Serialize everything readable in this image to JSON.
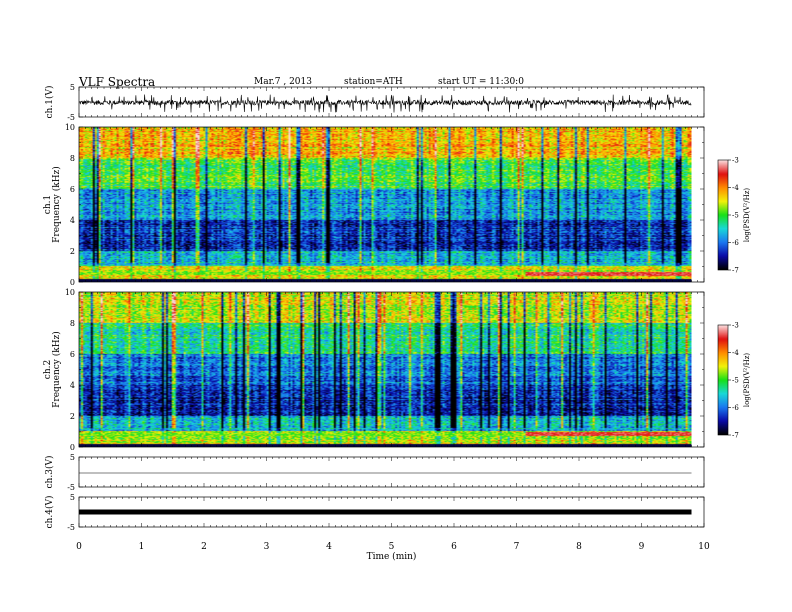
{
  "header": {
    "title": "VLF  Spectra",
    "date": "Mar.7  , 2013",
    "station": "station=ATH",
    "start": "start  UT =   11:30:0"
  },
  "panels": {
    "ch1_wave": {
      "ylabel": "ch.1(V)",
      "ticks": [
        "5",
        "-5"
      ]
    },
    "ch1_spec": {
      "ylabel_top": "ch.1",
      "ylabel": "Frequency  (kHz)",
      "ticks": [
        "10",
        "8",
        "6",
        "4",
        "2",
        "0"
      ]
    },
    "ch2_spec": {
      "ylabel_top": "ch.2",
      "ylabel": "Frequency  (kHz)",
      "ticks": [
        "10",
        "8",
        "6",
        "4",
        "2",
        "0"
      ]
    },
    "ch3_wave": {
      "ylabel": "ch.3(V)",
      "ticks": [
        "5",
        "-5"
      ]
    },
    "ch4_wave": {
      "ylabel": "ch.4(V)",
      "ticks": [
        "5",
        "-5"
      ]
    }
  },
  "colorbar": {
    "label": "log(PSD(V²/Hz)",
    "ticks": [
      "-3",
      "-4",
      "-5",
      "-6",
      "-7"
    ],
    "colors": [
      "#fbdada",
      "#e01010",
      "#ff8c00",
      "#f2f20a",
      "#18e018",
      "#18d8d8",
      "#1a78f0",
      "#0a0aa8",
      "#000000"
    ]
  },
  "chart_data": [
    {
      "type": "line",
      "title": "ch.1(V)",
      "ylabel": "ch.1(V)",
      "xlabel": "Time  (min)",
      "xlim": [
        0,
        10
      ],
      "ylim": [
        -5,
        5
      ],
      "data_extent_min": [
        0,
        9.8
      ],
      "typical_amplitude_V": [
        -1.5,
        1.0
      ],
      "spikes_V": [
        2.5,
        -3.5
      ]
    },
    {
      "type": "heatmap",
      "title": "ch.1",
      "ylabel": "Frequency  (kHz)",
      "xlabel": "Time  (min)",
      "xlim": [
        0,
        10
      ],
      "ylim": [
        0,
        10
      ],
      "colorbar_label": "log(PSD(V²/Hz)",
      "color_range": [
        -7,
        -3
      ],
      "log_psd_by_band": [
        {
          "freq_kHz": [
            8,
            10
          ],
          "log_psd": -4.2
        },
        {
          "freq_kHz": [
            6,
            8
          ],
          "log_psd": -5.0
        },
        {
          "freq_kHz": [
            4,
            6
          ],
          "log_psd": -5.8
        },
        {
          "freq_kHz": [
            2,
            4
          ],
          "log_psd": -6.3
        },
        {
          "freq_kHz": [
            1,
            2
          ],
          "log_psd": -5.6
        },
        {
          "freq_kHz": [
            0,
            1
          ],
          "log_psd": -4.5
        }
      ],
      "enhanced_line_kHz": 0.5,
      "enhanced_line_start_min": 7.3
    },
    {
      "type": "heatmap",
      "title": "ch.2",
      "ylabel": "Frequency  (kHz)",
      "xlabel": "Time  (min)",
      "xlim": [
        0,
        10
      ],
      "ylim": [
        0,
        10
      ],
      "colorbar_label": "log(PSD(V²/Hz)",
      "color_range": [
        -7,
        -3
      ],
      "log_psd_by_band": [
        {
          "freq_kHz": [
            8,
            10
          ],
          "log_psd": -4.6
        },
        {
          "freq_kHz": [
            6,
            8
          ],
          "log_psd": -5.3
        },
        {
          "freq_kHz": [
            4,
            6
          ],
          "log_psd": -6.0
        },
        {
          "freq_kHz": [
            2,
            4
          ],
          "log_psd": -6.4
        },
        {
          "freq_kHz": [
            1,
            2
          ],
          "log_psd": -5.6
        },
        {
          "freq_kHz": [
            0,
            1
          ],
          "log_psd": -4.6
        }
      ],
      "enhanced_line_kHz": 0.8,
      "enhanced_line_start_min": 7.3
    },
    {
      "type": "line",
      "title": "ch.3(V)",
      "ylabel": "ch.3(V)",
      "xlabel": "Time  (min)",
      "xlim": [
        0,
        10
      ],
      "ylim": [
        -5,
        5
      ],
      "data_extent_min": [
        0,
        9.8
      ],
      "level_V": 0
    },
    {
      "type": "line",
      "title": "ch.4(V)",
      "ylabel": "ch.4(V)",
      "xlabel": "Time  (min)",
      "xlim": [
        0,
        10
      ],
      "ylim": [
        -5,
        5
      ],
      "data_extent_min": [
        0,
        9.8
      ],
      "typical_amplitude_V": [
        -0.3,
        0.3
      ]
    }
  ],
  "xaxis": {
    "label": "Time  (min)",
    "ticks": [
      "0",
      "1",
      "2",
      "3",
      "4",
      "5",
      "6",
      "7",
      "8",
      "9",
      "10"
    ]
  }
}
